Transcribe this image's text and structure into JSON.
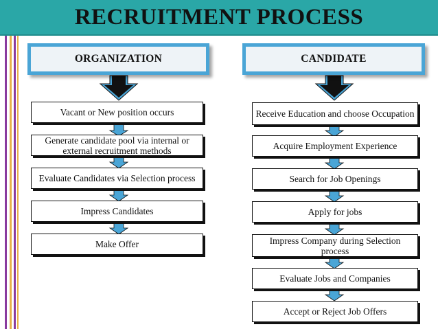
{
  "title": "RECRUITMENT PROCESS",
  "columns": [
    {
      "header": "ORGANIZATION",
      "steps": [
        "Vacant or New position occurs",
        "Generate candidate pool via internal or external recruitment methods",
        "Evaluate Candidates via Selection process",
        "Impress Candidates",
        "Make Offer"
      ]
    },
    {
      "header": "CANDIDATE",
      "steps": [
        "Receive Education and choose Occupation",
        "Acquire Employment Experience",
        "Search for Job Openings",
        "Apply for jobs",
        "Impress Company during Selection process",
        "Evaluate Jobs and Companies",
        "Accept or Reject Job Offers"
      ]
    }
  ],
  "colors": {
    "title_bar": "#2aa7a7",
    "header_border": "#4aa5d6",
    "arrow_fill": "#4aa5d6",
    "accent_purple": "#8a3b9e",
    "accent_gold": "#e7b04a"
  }
}
